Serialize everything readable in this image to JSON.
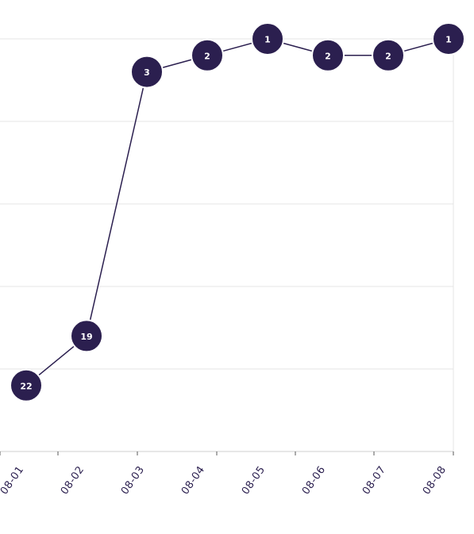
{
  "chart_data": {
    "type": "line",
    "categories": [
      "08-01",
      "08-02",
      "08-03",
      "08-04",
      "08-05",
      "08-06",
      "08-07",
      "08-08"
    ],
    "values": [
      22,
      19,
      3,
      2,
      1,
      2,
      2,
      1
    ],
    "y_axis_reversed": true,
    "ylim": [
      1,
      26
    ],
    "grid": true,
    "point_labels": true,
    "colors": {
      "series": "#2b1f4f",
      "grid": "#e4e4e4",
      "label": "#ffffff"
    }
  }
}
